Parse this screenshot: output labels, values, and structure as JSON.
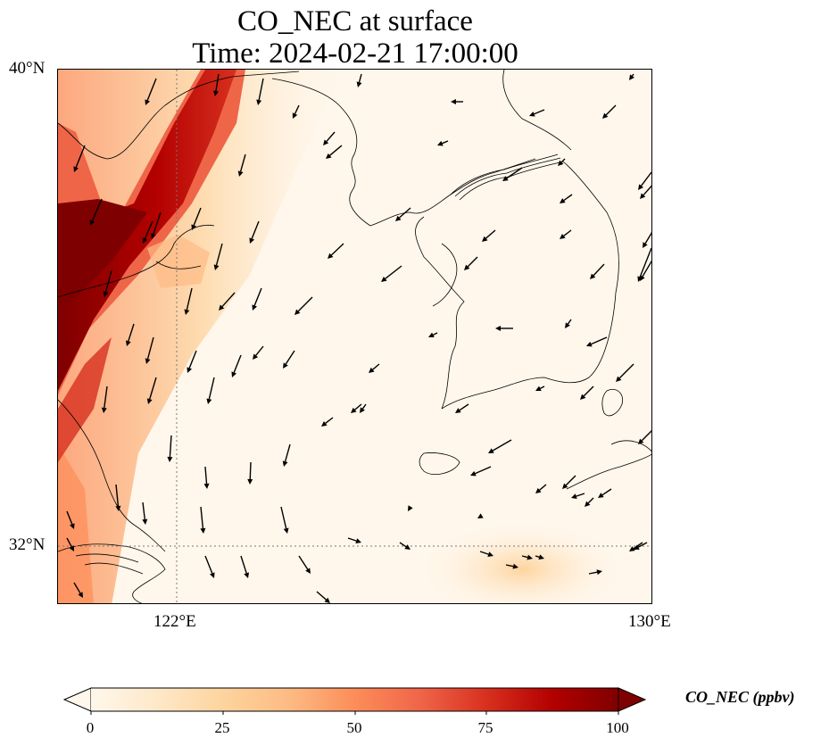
{
  "map": {
    "title_line1": "CO_NEC at surface",
    "title_line2": "Time: 2024-02-21 17:00:00",
    "lon_labels": [
      "122°E",
      "130°E"
    ],
    "lat_labels": [
      "40°N",
      "32°N"
    ],
    "lon_range": [
      120,
      130
    ],
    "lat_range": [
      31,
      40
    ],
    "gridlines": {
      "lons": [
        122,
        130
      ],
      "lats": [
        32,
        40
      ],
      "style": "dotted"
    },
    "features": [
      "coastlines",
      "country borders",
      "wind vectors"
    ]
  },
  "colorbar": {
    "label": "CO_NEC (ppbv)",
    "ticks": [
      "0",
      "25",
      "50",
      "75",
      "100"
    ],
    "range": [
      0,
      100
    ],
    "colormap": "OrRd",
    "extend": "both",
    "colors": [
      "#fff7ec",
      "#fee8c8",
      "#fdd49e",
      "#fdbb84",
      "#fc8d59",
      "#ef6548",
      "#d7301f",
      "#b30000",
      "#7f0000"
    ]
  }
}
